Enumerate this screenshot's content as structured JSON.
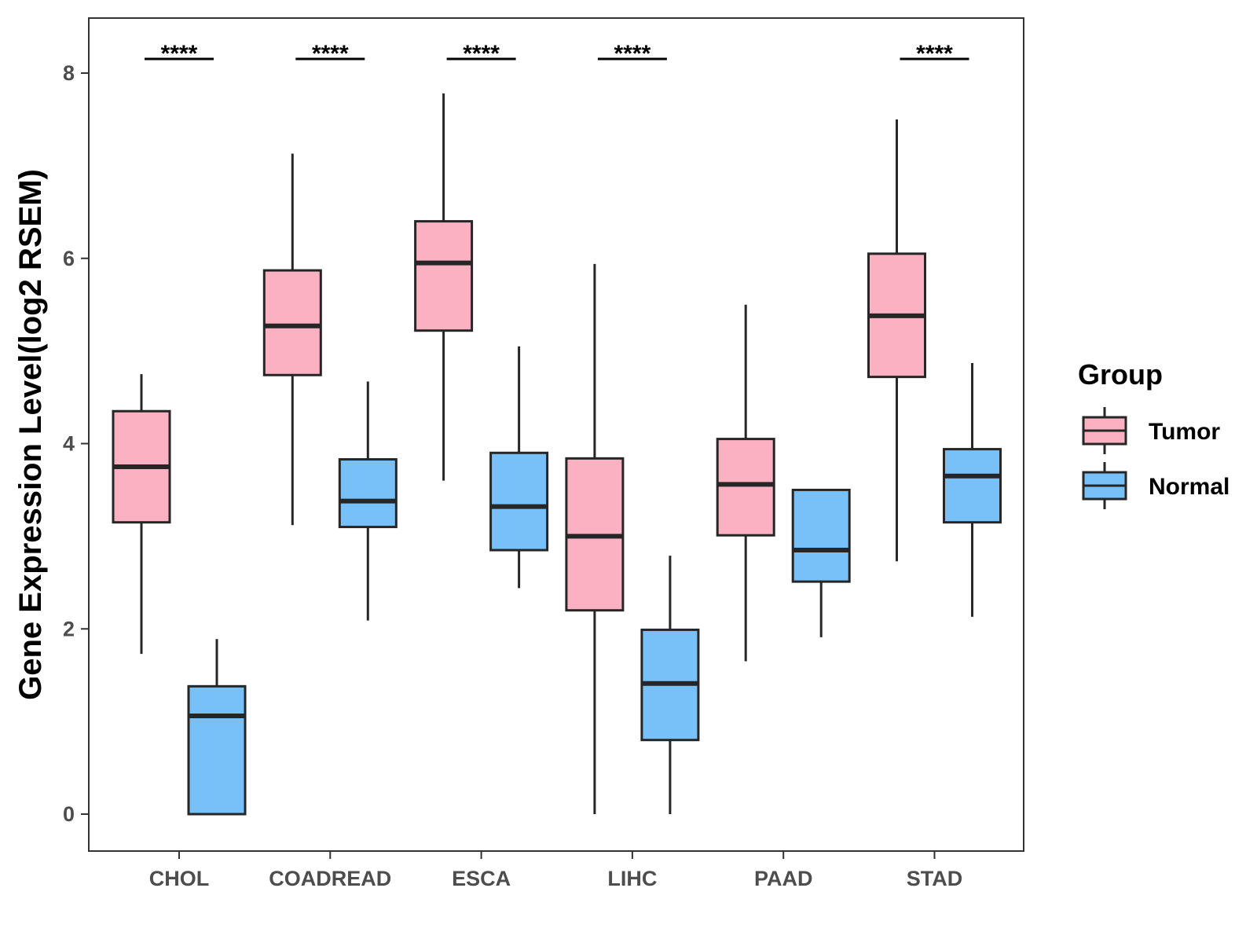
{
  "chart_data": {
    "type": "boxplot",
    "title": "",
    "xlabel": "",
    "ylabel": "Gene Expression Level(log2 RSEM)",
    "ylim": [
      -0.4,
      8.6
    ],
    "yticks": [
      0,
      2,
      4,
      6,
      8
    ],
    "grid": false,
    "categories": [
      "CHOL",
      "COADREAD",
      "ESCA",
      "LIHC",
      "PAAD",
      "STAD"
    ],
    "significance": [
      "****",
      "****",
      "****",
      "****",
      "",
      "****"
    ],
    "legend": {
      "title": "Group",
      "position": "right"
    },
    "series": [
      {
        "name": "Tumor",
        "color": "#FBB1C2",
        "boxes": [
          {
            "min": 1.73,
            "q1": 3.15,
            "median": 3.75,
            "q3": 4.35,
            "max": 4.75
          },
          {
            "min": 3.12,
            "q1": 4.74,
            "median": 5.27,
            "q3": 5.87,
            "max": 7.13
          },
          {
            "min": 3.6,
            "q1": 5.22,
            "median": 5.95,
            "q3": 6.4,
            "max": 7.78
          },
          {
            "min": 0.0,
            "q1": 2.2,
            "median": 3.0,
            "q3": 3.84,
            "max": 5.94
          },
          {
            "min": 1.65,
            "q1": 3.01,
            "median": 3.56,
            "q3": 4.05,
            "max": 5.5
          },
          {
            "min": 2.73,
            "q1": 4.72,
            "median": 5.38,
            "q3": 6.05,
            "max": 7.5
          }
        ]
      },
      {
        "name": "Normal",
        "color": "#78C1F8",
        "boxes": [
          {
            "min": 0.0,
            "q1": 0.0,
            "median": 1.06,
            "q3": 1.38,
            "max": 1.89
          },
          {
            "min": 2.09,
            "q1": 3.1,
            "median": 3.38,
            "q3": 3.83,
            "max": 4.67
          },
          {
            "min": 2.44,
            "q1": 2.85,
            "median": 3.32,
            "q3": 3.9,
            "max": 5.05
          },
          {
            "min": 0.0,
            "q1": 0.8,
            "median": 1.41,
            "q3": 1.99,
            "max": 2.79
          },
          {
            "min": 1.91,
            "q1": 2.51,
            "median": 2.85,
            "q3": 3.5,
            "max": 3.5
          },
          {
            "min": 2.13,
            "q1": 3.15,
            "median": 3.65,
            "q3": 3.94,
            "max": 4.87
          }
        ]
      }
    ]
  }
}
